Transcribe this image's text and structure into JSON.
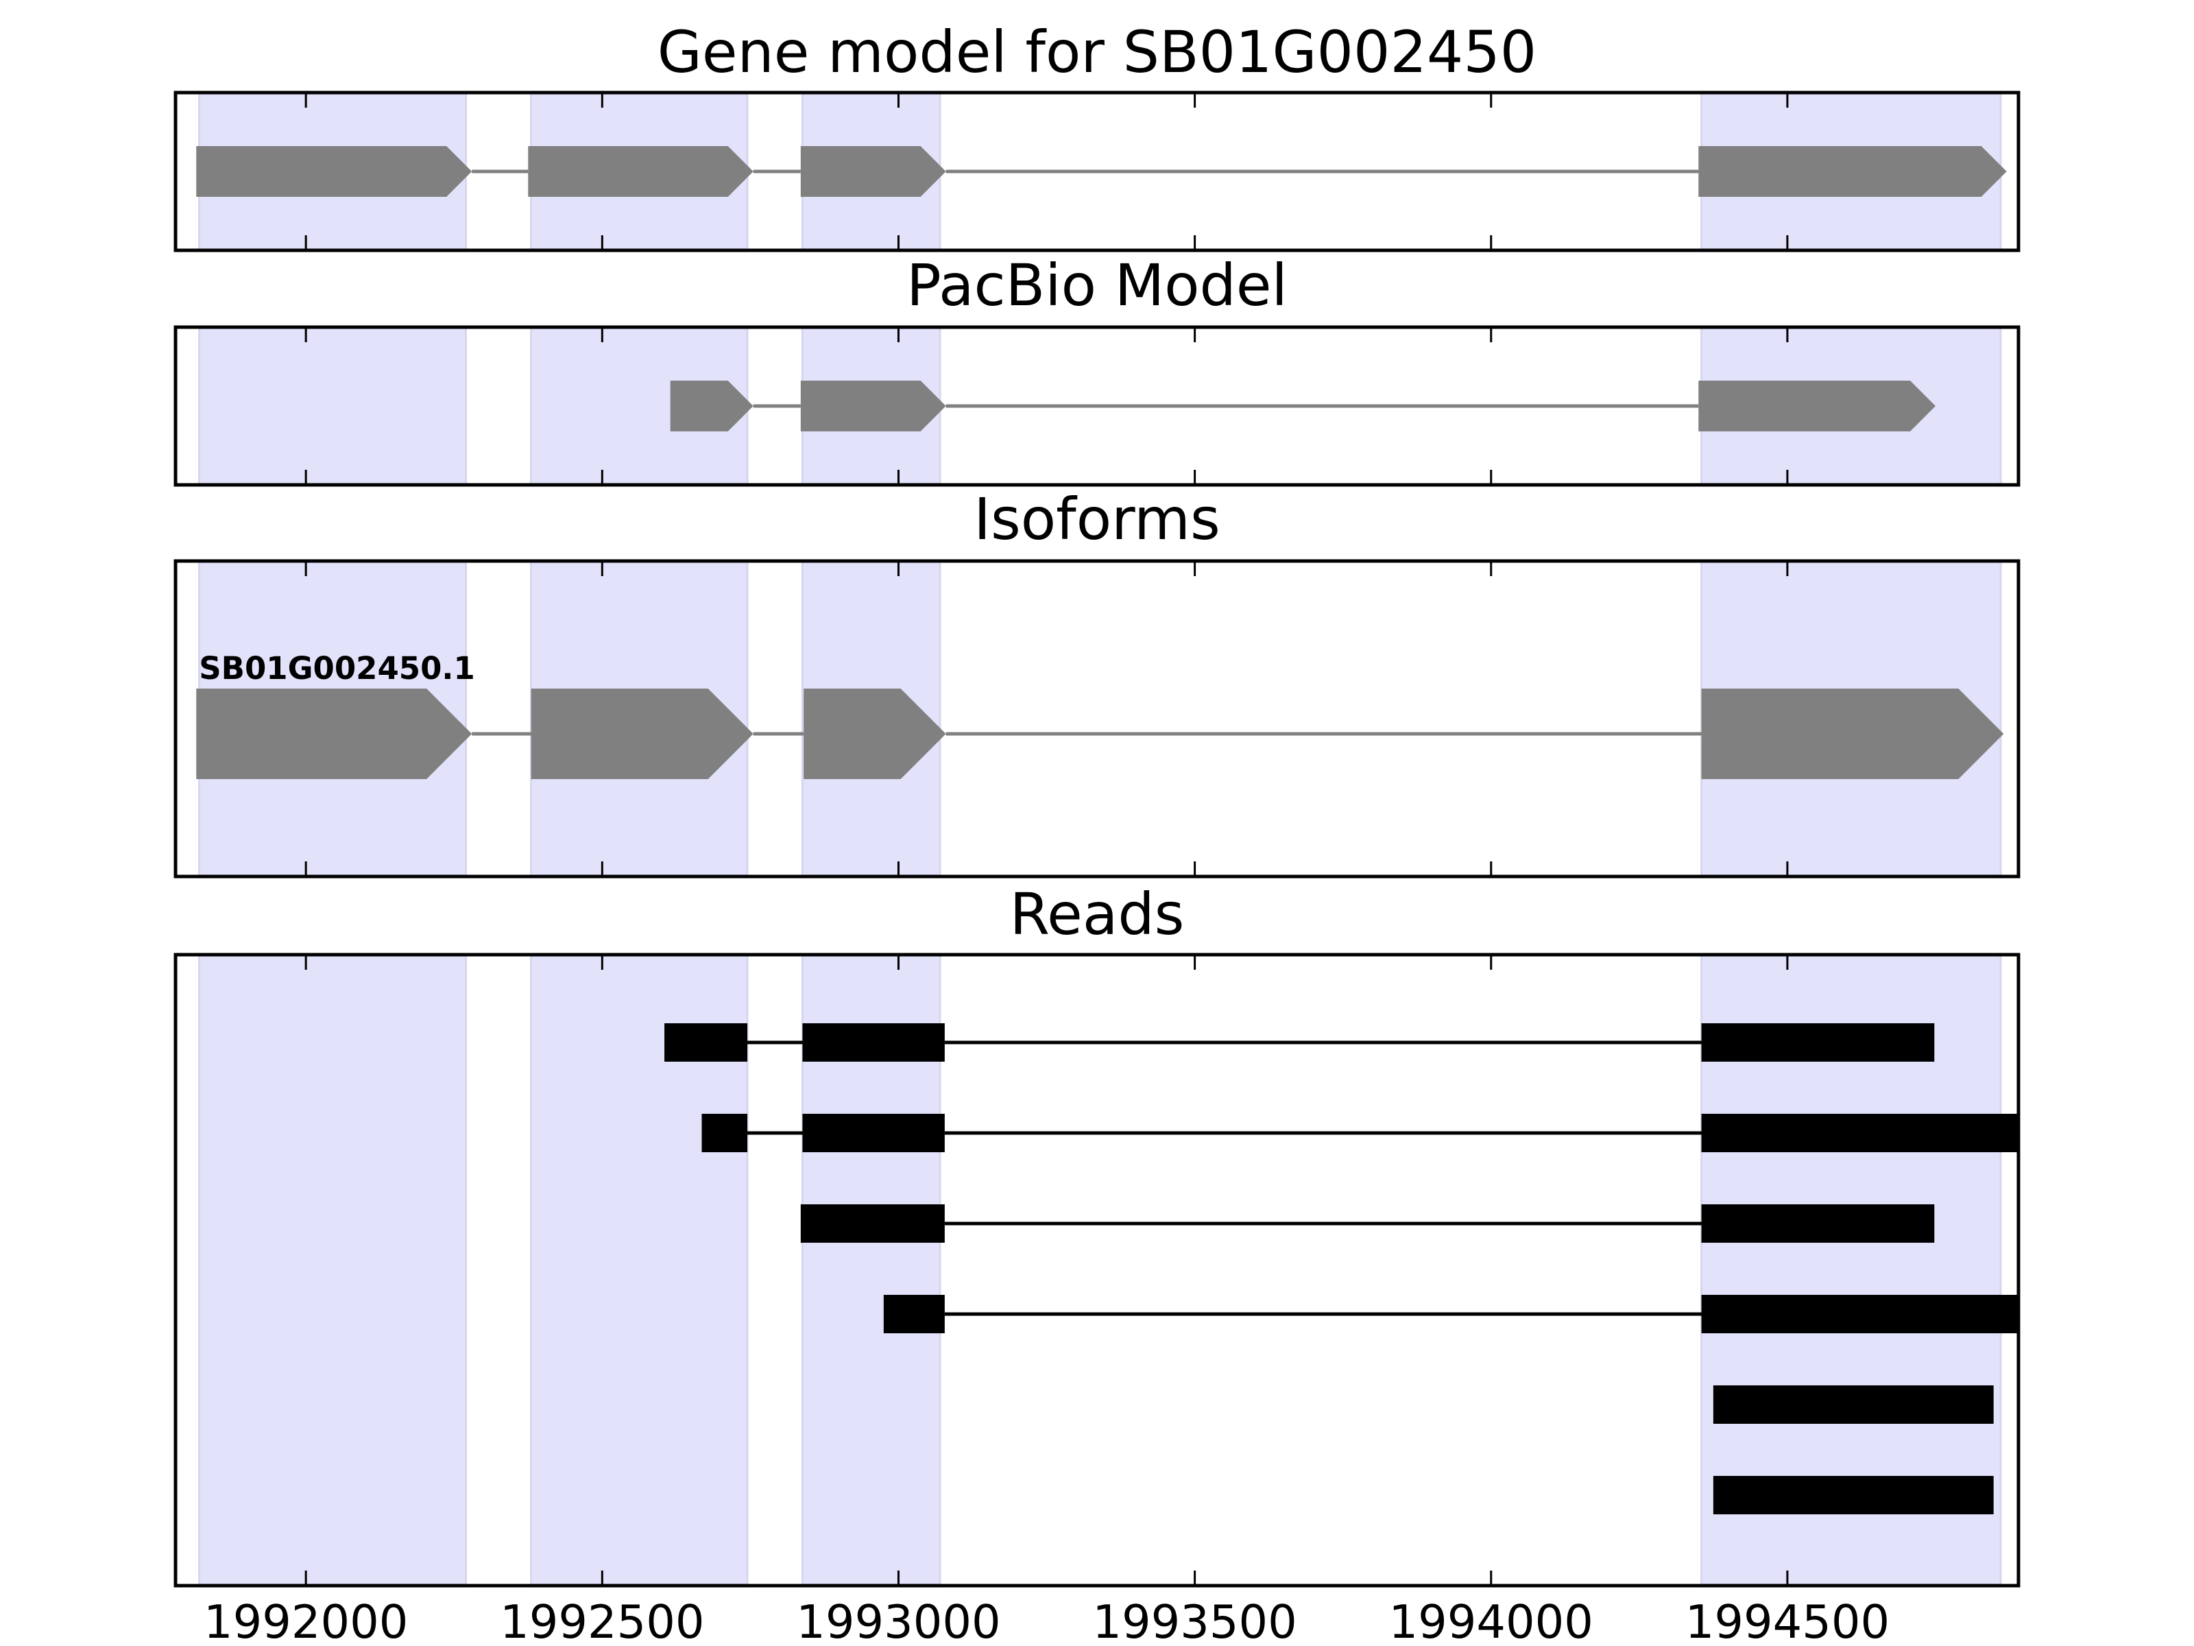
{
  "figure": {
    "background": "#ffffff",
    "highlight_color": "#e2e2fb",
    "highlight_edge_color": "#d6d6ef",
    "gene_feature_color": "#808080",
    "read_color": "#000000",
    "axis_color": "#000000"
  },
  "chart_data": {
    "type": "gene-structure",
    "xlim": [
      1991780,
      1994890
    ],
    "x_ticks": [
      1992000,
      1992500,
      1993000,
      1993500,
      1994000,
      1994500
    ],
    "x_tick_labels": [
      "1992000",
      "1992500",
      "1993000",
      "1993500",
      "1994000",
      "1994500"
    ],
    "highlighted_regions": [
      [
        1991820,
        1992270
      ],
      [
        1992380,
        1992745
      ],
      [
        1992838,
        1993070
      ],
      [
        1994355,
        1994860
      ]
    ],
    "panels": [
      {
        "id": "gene-model",
        "title": "Gene model for SB01G002450",
        "tracks": [
          {
            "label": "",
            "exons": [
              [
                1991815,
                1992280
              ],
              [
                1992375,
                1992755
              ],
              [
                1992835,
                1993080
              ],
              [
                1994350,
                1994870
              ]
            ]
          }
        ]
      },
      {
        "id": "pacbio-model",
        "title": "PacBio Model",
        "tracks": [
          {
            "label": "",
            "exons": [
              [
                1992615,
                1992755
              ],
              [
                1992835,
                1993080
              ],
              [
                1994350,
                1994750
              ]
            ]
          }
        ]
      },
      {
        "id": "isoforms",
        "title": "Isoforms",
        "tracks": [
          {
            "label": "SB01G002450.1",
            "exons": [
              [
                1991815,
                1992280
              ],
              [
                1992380,
                1992755
              ],
              [
                1992840,
                1993080
              ],
              [
                1994355,
                1994865
              ]
            ]
          }
        ]
      },
      {
        "id": "reads",
        "title": "Reads",
        "reads": [
          [
            [
              1992605,
              1992745
            ],
            [
              1992838,
              1993078
            ],
            [
              1994355,
              1994748
            ]
          ],
          [
            [
              1992668,
              1992745
            ],
            [
              1992838,
              1993078
            ],
            [
              1994355,
              1994890
            ]
          ],
          [
            [
              1992835,
              1993078
            ],
            [
              1994355,
              1994748
            ]
          ],
          [
            [
              1992975,
              1993078
            ],
            [
              1994355,
              1994890
            ]
          ],
          [
            [
              1994375,
              1994848
            ]
          ],
          [
            [
              1994375,
              1994848
            ]
          ]
        ]
      }
    ]
  }
}
